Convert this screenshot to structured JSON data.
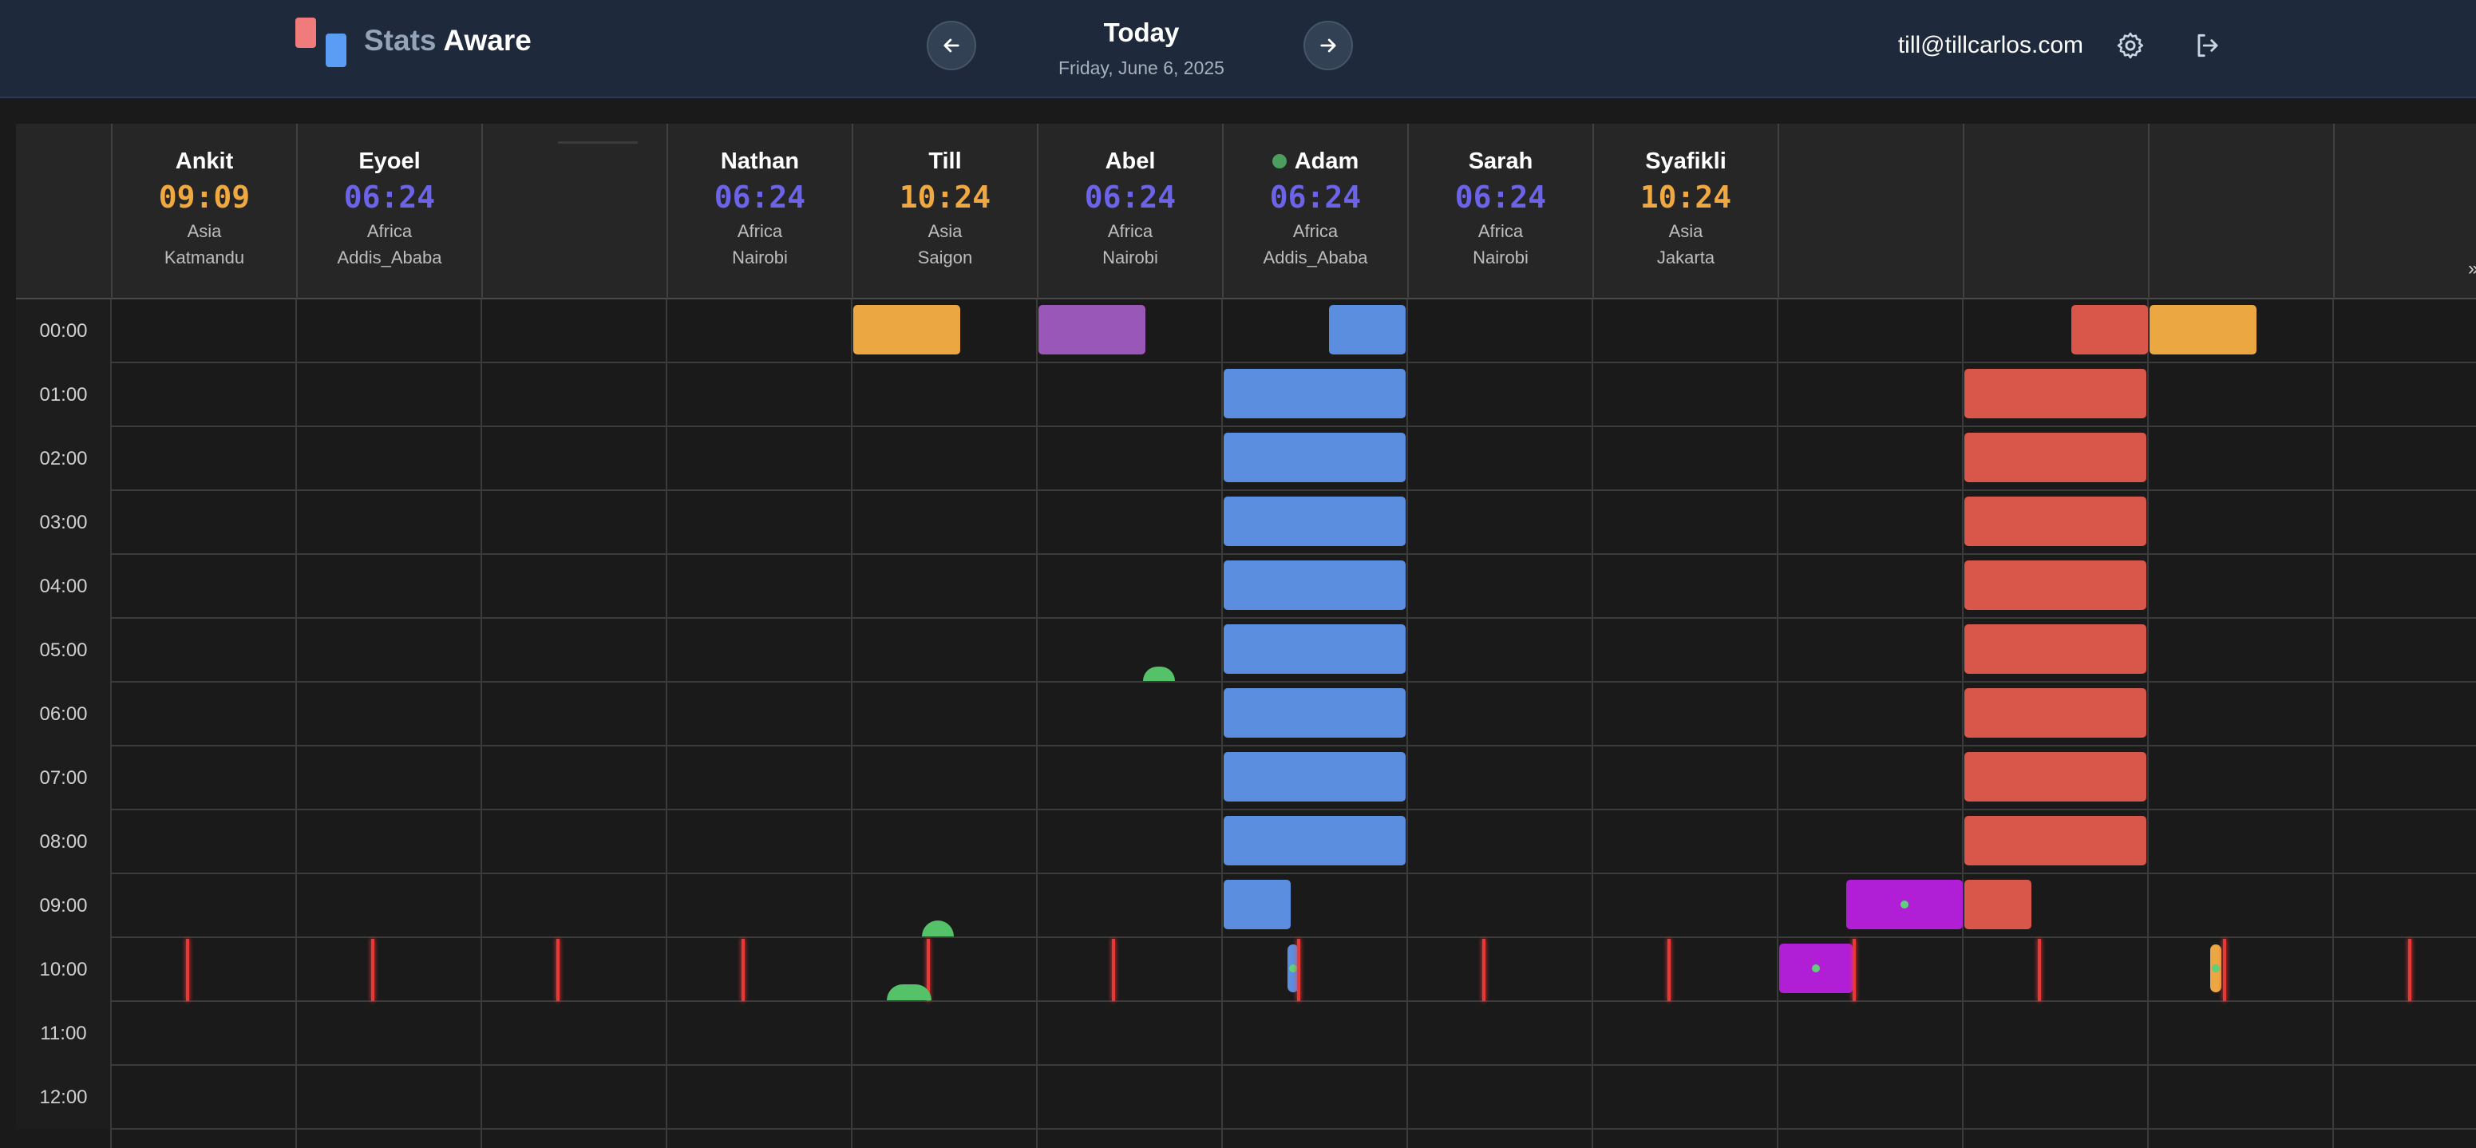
{
  "app": {
    "name_part1": "Stats",
    "name_part2": "Aware"
  },
  "nav": {
    "title": "Today",
    "date": "Friday, June 6, 2025",
    "prev_icon": "arrow-left-icon",
    "next_icon": "arrow-right-icon"
  },
  "user": {
    "email": "till@tillcarlos.com",
    "settings_icon": "gear-icon",
    "logout_icon": "logout-icon"
  },
  "colors": {
    "warm_time": "#f0a841",
    "cool_time": "#6b63e8",
    "blue_block": "#5b8ede",
    "orange_block": "#eba742",
    "purple_block": "#9957b7",
    "red_block": "#d9574a",
    "magenta_block": "#b01fd6",
    "now_line": "#e53935",
    "online": "#4b9e5d"
  },
  "people": [
    {
      "name": "Ankit",
      "time": "09:09",
      "region": "Asia",
      "city": "Katmandu",
      "time_color": "warm",
      "online": false
    },
    {
      "name": "Eyoel",
      "time": "06:24",
      "region": "Africa",
      "city": "Addis_Ababa",
      "time_color": "cool",
      "online": false
    },
    {
      "name": "",
      "time": "",
      "region": "",
      "city": "",
      "time_color": "cool",
      "online": false
    },
    {
      "name": "Nathan",
      "time": "06:24",
      "region": "Africa",
      "city": "Nairobi",
      "time_color": "cool",
      "online": false
    },
    {
      "name": "Till",
      "time": "10:24",
      "region": "Asia",
      "city": "Saigon",
      "time_color": "warm",
      "online": false
    },
    {
      "name": "Abel",
      "time": "06:24",
      "region": "Africa",
      "city": "Nairobi",
      "time_color": "cool",
      "online": false
    },
    {
      "name": "Adam",
      "time": "06:24",
      "region": "Africa",
      "city": "Addis_Ababa",
      "time_color": "cool",
      "online": true
    },
    {
      "name": "Sarah",
      "time": "06:24",
      "region": "Africa",
      "city": "Nairobi",
      "time_color": "cool",
      "online": false
    },
    {
      "name": "Syafikli",
      "time": "10:24",
      "region": "Asia",
      "city": "Jakarta",
      "time_color": "warm",
      "online": false
    },
    {
      "name": "",
      "time": "",
      "region": "",
      "city": "",
      "time_color": "cool",
      "online": false
    },
    {
      "name": "",
      "time": "",
      "region": "",
      "city": "",
      "time_color": "cool",
      "online": false
    },
    {
      "name": "",
      "time": "",
      "region": "",
      "city": "",
      "time_color": "cool",
      "online": false
    },
    {
      "name": "",
      "time": "",
      "region": "",
      "city": "",
      "time_color": "cool",
      "online": false
    }
  ],
  "hours": [
    "00:00",
    "01:00",
    "02:00",
    "03:00",
    "04:00",
    "05:00",
    "06:00",
    "07:00",
    "08:00",
    "09:00",
    "10:00",
    "11:00",
    "12:00"
  ],
  "current_time_hour": 10.4,
  "activity_blocks": [
    {
      "col": 4,
      "hour": 0,
      "color": "orange_block"
    },
    {
      "col": 5,
      "hour": 0,
      "color": "purple_block"
    },
    {
      "col": 6,
      "hour": 0,
      "color": "blue_block"
    },
    {
      "col": 6,
      "hour": 1,
      "color": "blue_block"
    },
    {
      "col": 6,
      "hour": 2,
      "color": "blue_block"
    },
    {
      "col": 6,
      "hour": 3,
      "color": "blue_block"
    },
    {
      "col": 6,
      "hour": 4,
      "color": "blue_block"
    },
    {
      "col": 6,
      "hour": 5,
      "color": "blue_block"
    },
    {
      "col": 6,
      "hour": 6,
      "color": "blue_block"
    },
    {
      "col": 6,
      "hour": 7,
      "color": "blue_block"
    },
    {
      "col": 6,
      "hour": 8,
      "color": "blue_block"
    },
    {
      "col": 6,
      "hour": 9,
      "color": "blue_block"
    },
    {
      "col": 10,
      "hour": 0,
      "color": "red_block"
    },
    {
      "col": 11,
      "hour": 0,
      "color": "orange_block"
    },
    {
      "col": 10,
      "hour": 1,
      "color": "red_block"
    },
    {
      "col": 10,
      "hour": 2,
      "color": "red_block"
    },
    {
      "col": 10,
      "hour": 3,
      "color": "red_block"
    },
    {
      "col": 10,
      "hour": 4,
      "color": "red_block"
    },
    {
      "col": 10,
      "hour": 5,
      "color": "red_block"
    },
    {
      "col": 10,
      "hour": 6,
      "color": "red_block"
    },
    {
      "col": 10,
      "hour": 7,
      "color": "red_block"
    },
    {
      "col": 10,
      "hour": 8,
      "color": "red_block"
    },
    {
      "col": 9,
      "hour": 9,
      "color": "magenta_block"
    },
    {
      "col": 10,
      "hour": 9,
      "color": "red_block"
    },
    {
      "col": 9,
      "hour": 10,
      "color": "magenta_block"
    }
  ],
  "more_indicator": "»"
}
